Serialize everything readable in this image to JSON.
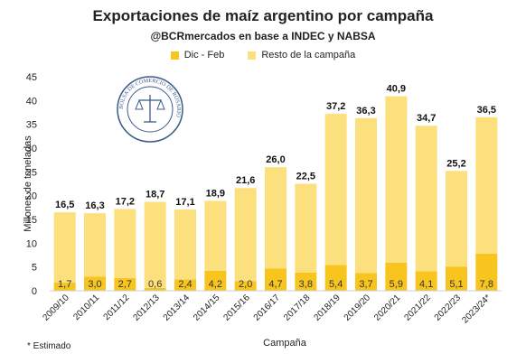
{
  "chart_data": {
    "type": "bar",
    "stacked": true,
    "title": "Exportaciones de maíz argentino por campaña",
    "subtitle": "@BCRmercados en base a INDEC y NABSA",
    "xlabel": "Campaña",
    "ylabel": "Millones de toneladas",
    "ylim": [
      0,
      45
    ],
    "yticks": [
      0,
      5,
      10,
      15,
      20,
      25,
      30,
      35,
      40,
      45
    ],
    "ytick_labels": [
      "0",
      "5",
      "10",
      "15",
      "20",
      "25",
      "30",
      "35",
      "40",
      "45"
    ],
    "legend_position": "top",
    "grid": false,
    "categories": [
      "2009/10",
      "2010/11",
      "2011/12",
      "2012/13",
      "2013/14",
      "2014/15",
      "2015/16",
      "2016/17",
      "2017/18",
      "2018/19",
      "2019/20",
      "2020/21",
      "2021/22",
      "2022/23",
      "2023/24*"
    ],
    "series": [
      {
        "name": "Dic - Feb",
        "color": "#F7C51E",
        "values": [
          1.7,
          3.0,
          2.7,
          0.6,
          2.4,
          4.2,
          2.0,
          4.7,
          3.8,
          5.4,
          3.7,
          5.9,
          4.1,
          5.1,
          7.8
        ],
        "labels": [
          "1,7",
          "3,0",
          "2,7",
          "0,6",
          "2,4",
          "4,2",
          "2,0",
          "4,7",
          "3,8",
          "5,4",
          "3,7",
          "5,9",
          "4,1",
          "5,1",
          "7,8"
        ]
      },
      {
        "name": "Resto de la campaña",
        "color": "#FCE07E",
        "values": [
          14.8,
          13.3,
          14.5,
          18.1,
          14.7,
          14.7,
          19.6,
          21.3,
          18.7,
          31.8,
          32.6,
          35.0,
          30.6,
          20.1,
          28.7
        ]
      }
    ],
    "totals": [
      16.5,
      16.3,
      17.2,
      18.7,
      17.1,
      18.9,
      21.6,
      26.0,
      22.5,
      37.2,
      36.3,
      40.9,
      34.7,
      25.2,
      36.5
    ],
    "total_labels": [
      "16,5",
      "16,3",
      "17,2",
      "18,7",
      "17,1",
      "18,9",
      "21,6",
      "26,0",
      "22,5",
      "37,2",
      "36,3",
      "40,9",
      "34,7",
      "25,2",
      "36,5"
    ],
    "footnote": "* Estimado"
  },
  "logo": {
    "text": "BOLSA DE COMERCIO DE ROSARIO",
    "color": "#3a5a8a"
  }
}
